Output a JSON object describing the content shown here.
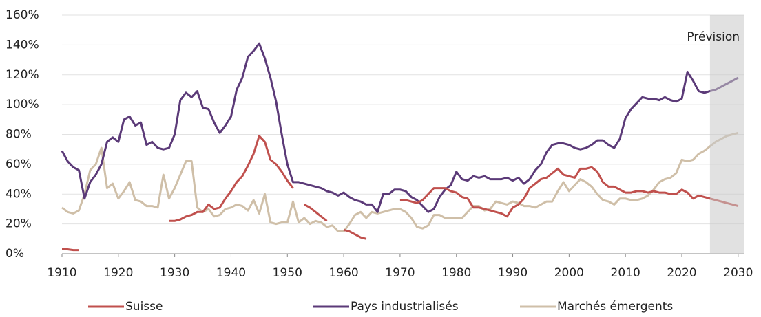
{
  "chart_data": {
    "type": "line",
    "annotation": "Prévision",
    "shaded_xlim": [
      2025,
      2031
    ],
    "shade_color": "rgba(200,200,200,0.55)",
    "xlim": [
      1910,
      2031
    ],
    "xticks": [
      1910,
      1920,
      1930,
      1940,
      1950,
      1960,
      1970,
      1980,
      1990,
      2000,
      2010,
      2020,
      2030
    ],
    "ylim": [
      0,
      160
    ],
    "yticks": [
      {
        "value": 0,
        "label": "0%"
      },
      {
        "value": 20,
        "label": "20%"
      },
      {
        "value": 40,
        "label": "40%"
      },
      {
        "value": 60,
        "label": "60%"
      },
      {
        "value": 80,
        "label": "80%"
      },
      {
        "value": 100,
        "label": "100%"
      },
      {
        "value": 120,
        "label": "120%"
      },
      {
        "value": 140,
        "label": "140%"
      },
      {
        "value": 160,
        "label": "160%"
      }
    ],
    "grid": true,
    "legend": "bottom",
    "x": [
      1910,
      1911,
      1912,
      1913,
      1914,
      1915,
      1916,
      1917,
      1918,
      1919,
      1920,
      1921,
      1922,
      1923,
      1924,
      1925,
      1926,
      1927,
      1928,
      1929,
      1930,
      1931,
      1932,
      1933,
      1934,
      1935,
      1936,
      1937,
      1938,
      1939,
      1940,
      1941,
      1942,
      1943,
      1944,
      1945,
      1946,
      1947,
      1948,
      1949,
      1950,
      1951,
      1952,
      1953,
      1954,
      1955,
      1956,
      1957,
      1958,
      1959,
      1960,
      1961,
      1962,
      1963,
      1964,
      1965,
      1966,
      1967,
      1968,
      1969,
      1970,
      1971,
      1972,
      1973,
      1974,
      1975,
      1976,
      1977,
      1978,
      1979,
      1980,
      1981,
      1982,
      1983,
      1984,
      1985,
      1986,
      1987,
      1988,
      1989,
      1990,
      1991,
      1992,
      1993,
      1994,
      1995,
      1996,
      1997,
      1998,
      1999,
      2000,
      2001,
      2002,
      2003,
      2004,
      2005,
      2006,
      2007,
      2008,
      2009,
      2010,
      2011,
      2012,
      2013,
      2014,
      2015,
      2016,
      2017,
      2018,
      2019,
      2020,
      2021,
      2022,
      2023,
      2024,
      2025,
      2026,
      2027,
      2028,
      2029,
      2030
    ],
    "series": [
      {
        "name": "Suisse",
        "color": "#c0504d",
        "values": [
          3,
          3,
          2.5,
          2.5,
          null,
          null,
          null,
          null,
          null,
          null,
          null,
          null,
          null,
          null,
          null,
          null,
          null,
          null,
          null,
          22,
          22,
          23,
          25,
          26,
          28,
          28,
          33,
          30,
          31,
          37,
          42,
          48,
          52,
          59,
          67,
          79,
          75,
          63,
          60,
          55,
          49,
          44,
          null,
          33,
          31,
          28,
          25,
          22,
          null,
          null,
          16,
          15,
          13,
          11,
          10,
          null,
          null,
          null,
          null,
          null,
          36,
          36,
          35,
          34,
          36,
          40,
          44,
          44,
          44,
          42,
          41,
          38,
          37,
          31,
          31,
          30,
          29,
          28,
          27,
          25,
          31,
          33,
          37,
          44,
          47,
          50,
          51,
          54,
          57,
          53,
          52,
          51,
          57,
          57,
          58,
          55,
          48,
          45,
          45,
          43,
          41,
          41,
          42,
          42,
          41,
          42,
          41,
          41,
          40,
          40,
          43,
          41,
          37,
          39,
          38,
          37,
          36,
          35,
          34,
          33,
          32
        ]
      },
      {
        "name": "Pays industrialisés",
        "color": "#5b3a78",
        "values": [
          69,
          62,
          58,
          56,
          37,
          48,
          53,
          60,
          75,
          78,
          75,
          90,
          92,
          86,
          88,
          73,
          75,
          71,
          70,
          71,
          80,
          103,
          108,
          105,
          109,
          98,
          97,
          88,
          81,
          86,
          92,
          110,
          118,
          132,
          136,
          141,
          131,
          118,
          102,
          80,
          60,
          48,
          48,
          47,
          46,
          45,
          44,
          42,
          41,
          39,
          41,
          38,
          36,
          35,
          33,
          33,
          28,
          40,
          40,
          43,
          43,
          42,
          38,
          36,
          32,
          28,
          30,
          38,
          43,
          46,
          55,
          50,
          49,
          52,
          51,
          52,
          50,
          50,
          50,
          51,
          49,
          51,
          47,
          50,
          56,
          60,
          68,
          73,
          74,
          74,
          73,
          71,
          70,
          71,
          73,
          76,
          76,
          73,
          71,
          77,
          91,
          97,
          101,
          105,
          104,
          104,
          103,
          105,
          103,
          102,
          104,
          122,
          116,
          109,
          108,
          109,
          110,
          112,
          114,
          116,
          118
        ]
      },
      {
        "name": "Marchés émergents",
        "color": "#cfbfa8",
        "values": [
          31,
          28,
          27,
          29,
          40,
          56,
          60,
          71,
          44,
          47,
          37,
          42,
          48,
          36,
          35,
          32,
          32,
          31,
          53,
          37,
          44,
          53,
          62,
          62,
          31,
          28,
          30,
          25,
          26,
          30,
          31,
          33,
          32,
          29,
          36,
          27,
          40,
          21,
          20,
          21,
          21,
          35,
          21,
          24,
          20,
          22,
          21,
          18,
          19,
          15,
          15,
          20,
          26,
          28,
          24,
          28,
          27,
          28,
          29,
          30,
          30,
          28,
          24,
          18,
          17,
          19,
          26,
          26,
          24,
          24,
          24,
          24,
          28,
          32,
          32,
          29,
          30,
          35,
          34,
          33,
          35,
          34,
          32,
          32,
          31,
          33,
          35,
          35,
          42,
          48,
          42,
          46,
          50,
          48,
          45,
          40,
          36,
          35,
          33,
          37,
          37,
          36,
          36,
          37,
          39,
          43,
          48,
          50,
          51,
          54,
          63,
          62,
          63,
          67,
          69,
          72,
          75,
          77,
          79,
          80,
          81
        ]
      }
    ]
  }
}
